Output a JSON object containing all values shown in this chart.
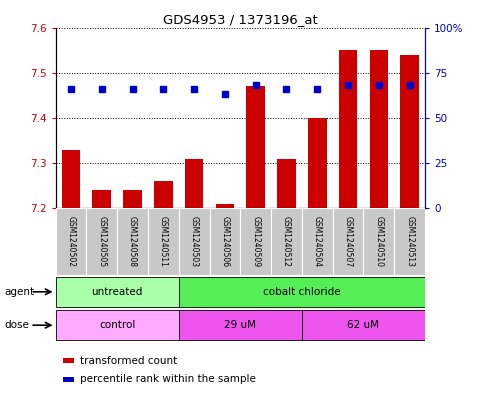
{
  "title": "GDS4953 / 1373196_at",
  "samples": [
    "GSM1240502",
    "GSM1240505",
    "GSM1240508",
    "GSM1240511",
    "GSM1240503",
    "GSM1240506",
    "GSM1240509",
    "GSM1240512",
    "GSM1240504",
    "GSM1240507",
    "GSM1240510",
    "GSM1240513"
  ],
  "bar_values": [
    7.33,
    7.24,
    7.24,
    7.26,
    7.31,
    7.21,
    7.47,
    7.31,
    7.4,
    7.55,
    7.55,
    7.54
  ],
  "bar_bottom": 7.2,
  "percentile_values": [
    66,
    66,
    66,
    66,
    66,
    63,
    68,
    66,
    66,
    68,
    68,
    68
  ],
  "ylim_left": [
    7.2,
    7.6
  ],
  "ylim_right": [
    0,
    100
  ],
  "yticks_left": [
    7.2,
    7.3,
    7.4,
    7.5,
    7.6
  ],
  "yticks_right": [
    0,
    25,
    50,
    75,
    100
  ],
  "ytick_labels_right": [
    "0",
    "25",
    "50",
    "75",
    "100%"
  ],
  "bar_color": "#cc0000",
  "percentile_color": "#0000cc",
  "agent_groups": [
    {
      "label": "untreated",
      "start": 0,
      "end": 3,
      "color": "#aaffaa"
    },
    {
      "label": "cobalt chloride",
      "start": 4,
      "end": 11,
      "color": "#55ee55"
    }
  ],
  "dose_groups": [
    {
      "label": "control",
      "start": 0,
      "end": 3,
      "color": "#ffaaff"
    },
    {
      "label": "29 uM",
      "start": 4,
      "end": 7,
      "color": "#ee55ee"
    },
    {
      "label": "62 uM",
      "start": 8,
      "end": 11,
      "color": "#ee55ee"
    }
  ],
  "legend_items": [
    {
      "color": "#cc0000",
      "label": "transformed count"
    },
    {
      "color": "#0000cc",
      "label": "percentile rank within the sample"
    }
  ],
  "tick_label_color": "#cc0000",
  "right_tick_color": "#0000cc",
  "background_plot": "#ffffff",
  "background_sample_row": "#c8c8c8"
}
